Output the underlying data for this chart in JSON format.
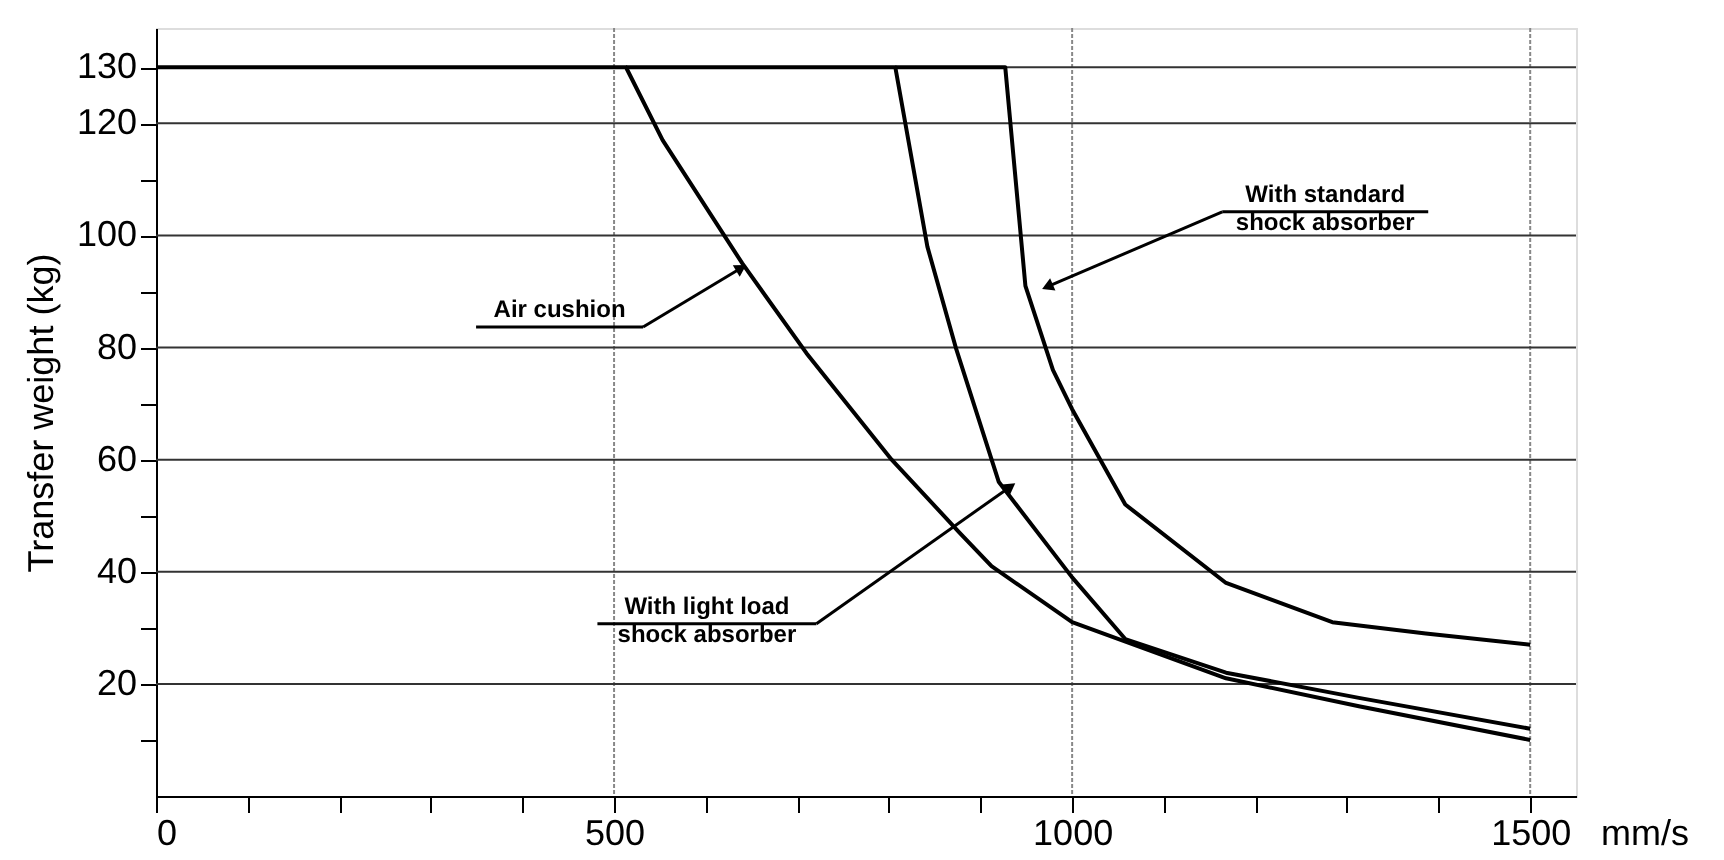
{
  "chart_data": {
    "type": "line",
    "ylabel": "Transfer weight (kg)",
    "xlabel": "mm/s",
    "xlim": [
      0,
      1550
    ],
    "ylim": [
      0,
      137
    ],
    "xticks": [
      0,
      {
        "value": 100,
        "label": null
      },
      {
        "value": 200,
        "label": null
      },
      {
        "value": 300,
        "label": null
      },
      {
        "value": 400,
        "label": null
      },
      500,
      {
        "value": 600,
        "label": null
      },
      {
        "value": 700,
        "label": null
      },
      {
        "value": 800,
        "label": null
      },
      {
        "value": 900,
        "label": null
      },
      1000,
      {
        "value": 1100,
        "label": null
      },
      {
        "value": 1200,
        "label": null
      },
      {
        "value": 1300,
        "label": null
      },
      {
        "value": 1400,
        "label": null
      },
      1500
    ],
    "yticks": [
      {
        "value": 10,
        "label": null
      },
      20,
      {
        "value": 30,
        "label": null
      },
      40,
      {
        "value": 50,
        "label": null
      },
      60,
      {
        "value": 70,
        "label": null
      },
      80,
      {
        "value": 90,
        "label": null
      },
      100,
      {
        "value": 110,
        "label": null
      },
      120,
      130
    ],
    "grid": true,
    "marker": "none",
    "line_style": "solid",
    "series": [
      {
        "color": "#000000",
        "x": [
          0,
          513,
          553,
          640,
          710,
          803,
          877,
          912,
          1000,
          1168,
          1313,
          1500
        ],
        "values": [
          130,
          130,
          117,
          95,
          79,
          60,
          47,
          41,
          31,
          21,
          16,
          10
        ]
      },
      {
        "color": "#000000",
        "x": [
          513,
          807,
          842,
          873,
          920,
          1000,
          1058,
          1168,
          1313,
          1500
        ],
        "values": [
          130,
          130,
          98,
          80,
          56,
          39,
          28,
          22,
          17.5,
          12
        ]
      },
      {
        "color": "#000000",
        "x": [
          807,
          927,
          949,
          979,
          1000,
          1058,
          1168,
          1284,
          1386,
          1500
        ],
        "values": [
          130,
          130,
          91,
          76,
          69,
          52,
          38,
          31,
          29,
          27
        ]
      }
    ],
    "annotations": [
      {
        "text": "Air cushion",
        "x": 637,
        "y": 94
      },
      {
        "text": "With light load\nshock absorber",
        "x": 931,
        "y": 55
      },
      {
        "text": "With standard\nshock absorber",
        "x": 975,
        "y": 91
      }
    ]
  }
}
